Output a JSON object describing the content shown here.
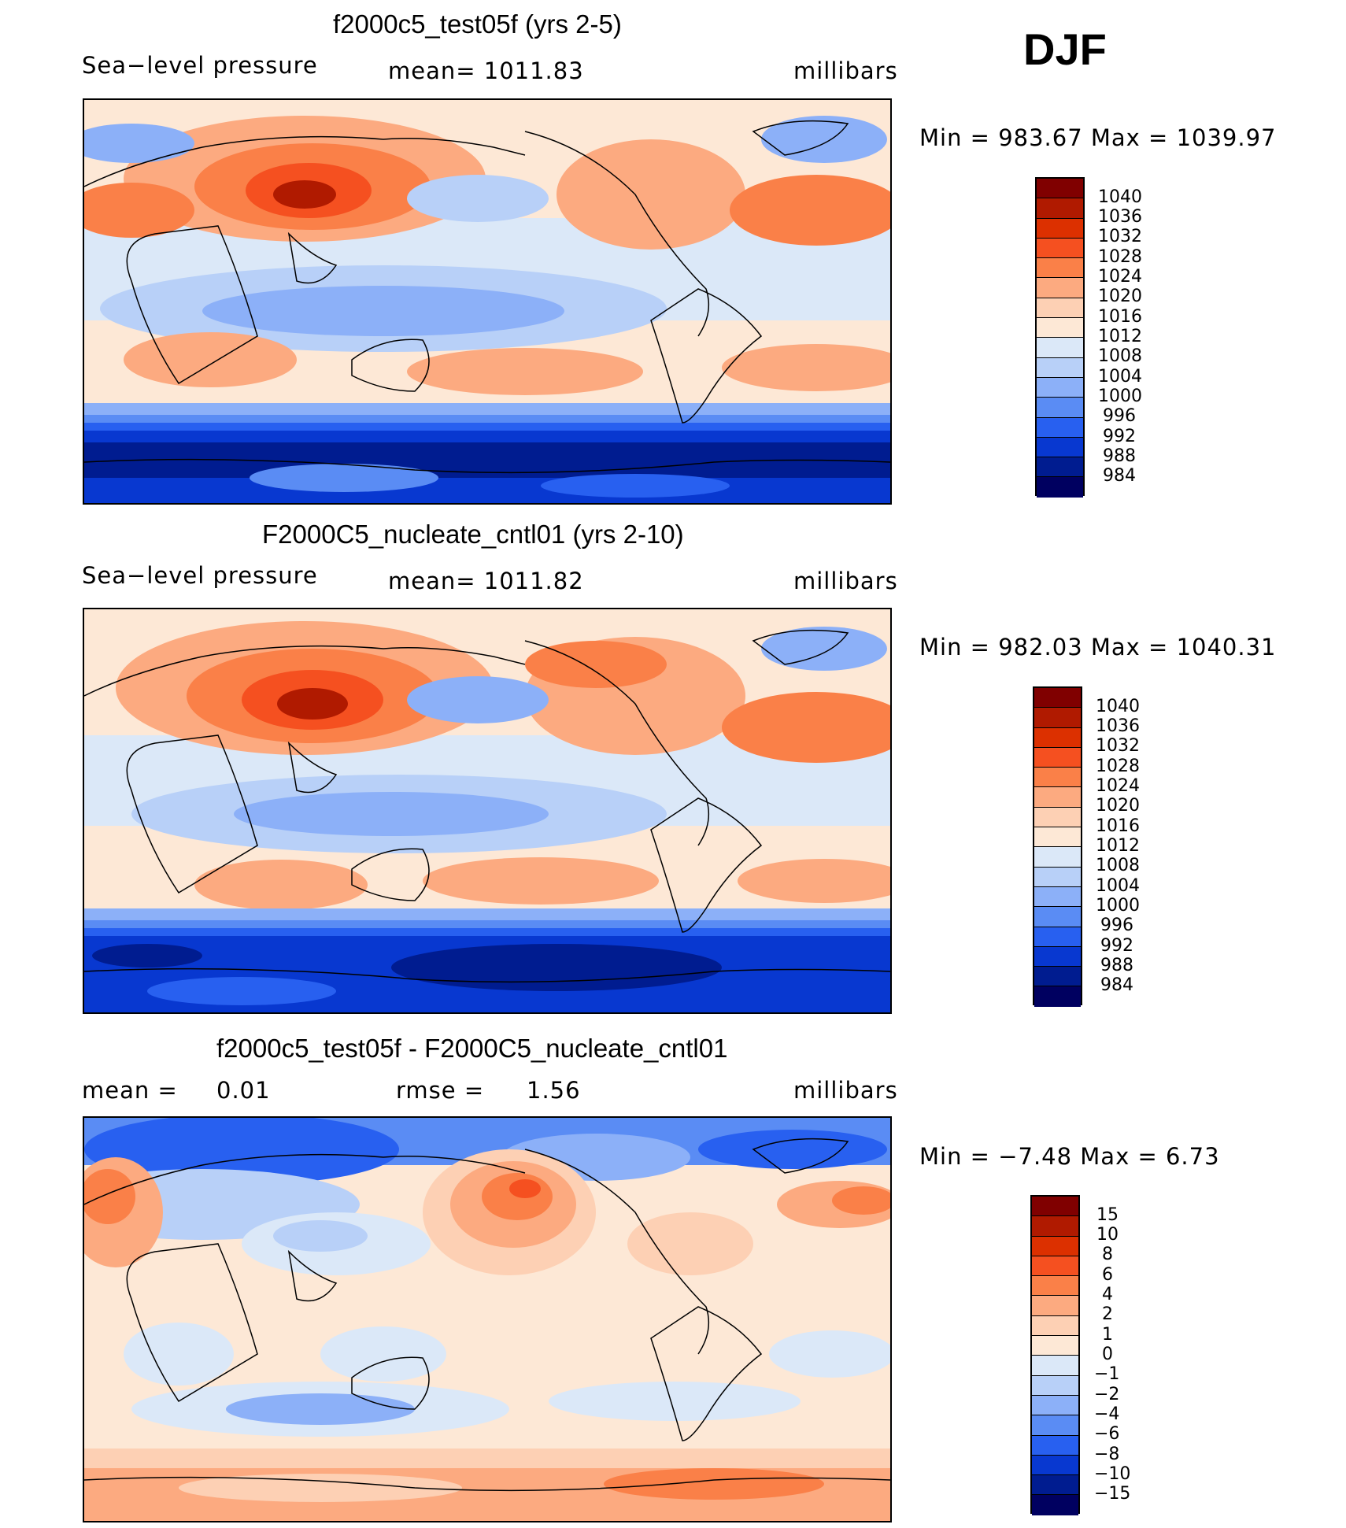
{
  "season": "DJF",
  "panels": [
    {
      "title": "f2000c5_test05f (yrs 2-5)",
      "left_label": "Sea−level pressure",
      "center_label": "mean=  1011.83",
      "units": "millibars",
      "minmax": "Min  =  983.67  Max  =  1039.97",
      "colorbar_labels": [
        "1040",
        "1036",
        "1032",
        "1028",
        "1024",
        "1020",
        "1016",
        "1012",
        "1008",
        "1004",
        "1000",
        "996",
        "992",
        "988",
        "984"
      ]
    },
    {
      "title": "F2000C5_nucleate_cntl01 (yrs 2-10)",
      "left_label": "Sea−level pressure",
      "center_label": "mean=  1011.82",
      "units": "millibars",
      "minmax": "Min  =  982.03  Max  =  1040.31",
      "colorbar_labels": [
        "1040",
        "1036",
        "1032",
        "1028",
        "1024",
        "1020",
        "1016",
        "1012",
        "1008",
        "1004",
        "1000",
        "996",
        "992",
        "988",
        "984"
      ]
    },
    {
      "title": "f2000c5_test05f - F2000C5_nucleate_cntl01",
      "left_label": "mean  =",
      "left_value": "0.01",
      "center_label": "rmse  =",
      "center_value": "1.56",
      "units": "millibars",
      "minmax": "Min  =   −7.48  Max  =      6.73",
      "colorbar_labels": [
        "15",
        "10",
        "8",
        "6",
        "4",
        "2",
        "1",
        "0",
        "−1",
        "−2",
        "−4",
        "−6",
        "−8",
        "−10",
        "−15"
      ]
    }
  ],
  "colors": {
    "scale": [
      "#800000",
      "#b01a00",
      "#dc3000",
      "#f55020",
      "#fa8048",
      "#fcaa80",
      "#fdd0b4",
      "#fde8d6",
      "#dbe8f8",
      "#b8d0f8",
      "#8cb0f8",
      "#5a8cf4",
      "#2860f0",
      "#0838d0",
      "#001c90",
      "#000060"
    ]
  }
}
